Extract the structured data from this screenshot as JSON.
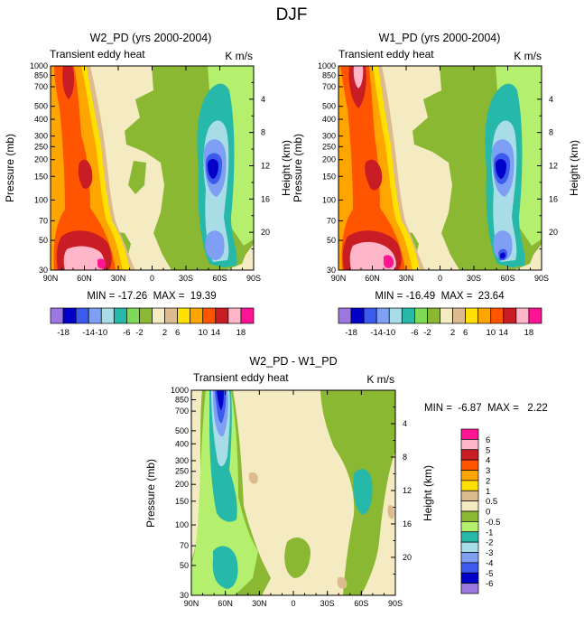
{
  "figure": {
    "title": "DJF"
  },
  "chart_data": [
    {
      "type": "heatmap",
      "title": "W2_PD (yrs 2000-2004)",
      "subtitle": "Transient eddy heat",
      "units": "K m/s",
      "ylabel": "Pressure (mb)",
      "y2label": "Height (km)",
      "x_ticks": [
        "90N",
        "60N",
        "30N",
        "0",
        "30S",
        "60S",
        "90S"
      ],
      "y_ticks": [
        "30",
        "50",
        "70",
        "100",
        "150",
        "200",
        "250",
        "300",
        "400",
        "500",
        "700",
        "850",
        "1000"
      ],
      "y2_ticks": [
        "20",
        "16",
        "12",
        "8",
        "4"
      ],
      "stats_text": "MIN = -17.26  MAX =  19.39",
      "colorbar": {
        "labels": [
          "-18",
          "-14",
          "-10",
          "-6",
          "-2",
          "2",
          "6",
          "10",
          "14",
          "18"
        ],
        "colors": [
          "#9b77e0",
          "#0000c8",
          "#3c5aeb",
          "#7f9ff5",
          "#a8dde8",
          "#26b8a8",
          "#7ed957",
          "#8ab833",
          "#f5ebc3",
          "#dcbb8f",
          "#ffe000",
          "#ffa500",
          "#ff5500",
          "#c81d25",
          "#ffb6c8",
          "#ff1493"
        ]
      },
      "min": -17.26,
      "max": 19.39
    },
    {
      "type": "heatmap",
      "title": "W1_PD (yrs 2000-2004)",
      "subtitle": "Transient eddy heat",
      "units": "K m/s",
      "ylabel": "Pressure (mb)",
      "y2label": "Height (km)",
      "x_ticks": [
        "90N",
        "60N",
        "30N",
        "0",
        "30S",
        "60S",
        "90S"
      ],
      "y_ticks": [
        "30",
        "50",
        "70",
        "100",
        "150",
        "200",
        "250",
        "300",
        "400",
        "500",
        "700",
        "850",
        "1000"
      ],
      "y2_ticks": [
        "20",
        "16",
        "12",
        "8",
        "4"
      ],
      "stats_text": "MIN = -16.49  MAX =  23.64",
      "colorbar": {
        "labels": [
          "-18",
          "-14",
          "-10",
          "-6",
          "-2",
          "2",
          "6",
          "10",
          "14",
          "18"
        ],
        "colors": [
          "#9b77e0",
          "#0000c8",
          "#3c5aeb",
          "#7f9ff5",
          "#a8dde8",
          "#26b8a8",
          "#7ed957",
          "#8ab833",
          "#f5ebc3",
          "#dcbb8f",
          "#ffe000",
          "#ffa500",
          "#ff5500",
          "#c81d25",
          "#ffb6c8",
          "#ff1493"
        ]
      },
      "min": -16.49,
      "max": 23.64
    },
    {
      "type": "heatmap",
      "title": "W2_PD - W1_PD",
      "subtitle": "Transient eddy heat",
      "units": "K m/s",
      "ylabel": "Pressure (mb)",
      "y2label": "Height (km)",
      "x_ticks": [
        "90N",
        "60N",
        "30N",
        "0",
        "30S",
        "60S",
        "90S"
      ],
      "y_ticks": [
        "30",
        "50",
        "70",
        "100",
        "150",
        "200",
        "250",
        "300",
        "400",
        "500",
        "700",
        "850",
        "1000"
      ],
      "y2_ticks": [
        "20",
        "16",
        "12",
        "8",
        "4"
      ],
      "stats_text": "MIN =  -6.87  MAX =   2.22",
      "colorbar": {
        "labels": [
          "6",
          "5",
          "4",
          "3",
          "2",
          "1",
          "0.5",
          "0",
          "-0.5",
          "-1",
          "-2",
          "-3",
          "-4",
          "-5",
          "-6"
        ],
        "colors": [
          "#ff1493",
          "#ffb6c8",
          "#c81d25",
          "#ff5500",
          "#ffa500",
          "#ffe000",
          "#dcbb8f",
          "#f5ebc3",
          "#8ab833",
          "#b4f06e",
          "#26b8a8",
          "#a8dde8",
          "#7f9ff5",
          "#3c5aeb",
          "#0000c8",
          "#9b77e0"
        ]
      },
      "min": -6.87,
      "max": 2.22
    }
  ]
}
